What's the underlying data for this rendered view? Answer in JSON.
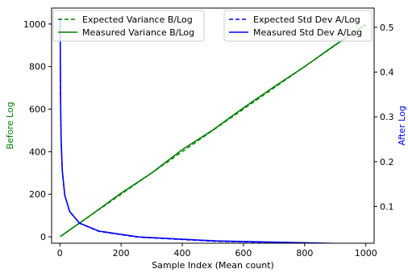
{
  "chart_data": {
    "type": "line",
    "title": "",
    "xlabel": "Sample Index (Mean count)",
    "ylabel_left": "Before Log",
    "ylabel_right": "After Log",
    "xlim": [
      -27,
      1027
    ],
    "ylim_left": [
      -30,
      1075
    ],
    "ylim_right": [
      0.018,
      0.543
    ],
    "x_ticks": [
      0,
      200,
      400,
      600,
      800,
      1000
    ],
    "y_ticks_left": [
      0,
      200,
      400,
      600,
      800,
      1000
    ],
    "y_ticks_right": [
      0.1,
      0.2,
      0.3,
      0.4,
      0.5
    ],
    "grid": false,
    "legend_left": {
      "placement": "upper-left",
      "entries": [
        {
          "label": "Expected Variance B/Log",
          "style": "dashed",
          "color": "#008000"
        },
        {
          "label": "Measured Variance B/Log",
          "style": "solid",
          "color": "#008000"
        }
      ]
    },
    "legend_right": {
      "placement": "upper-right",
      "entries": [
        {
          "label": "Expected Std Dev A/Log",
          "style": "dashed",
          "color": "#0000ff"
        },
        {
          "label": "Measured Std Dev A/Log",
          "style": "solid",
          "color": "#0000ff"
        }
      ]
    },
    "series": [
      {
        "name": "Expected Variance B/Log",
        "axis": "left",
        "color": "#008000",
        "style": "dashed",
        "x": [
          1,
          1000
        ],
        "y": [
          1,
          1000
        ]
      },
      {
        "name": "Measured Variance B/Log",
        "axis": "left",
        "color": "#008000",
        "style": "solid",
        "x": [
          1,
          100,
          200,
          300,
          400,
          500,
          600,
          700,
          800,
          900,
          1000
        ],
        "y": [
          1,
          101,
          205,
          300,
          410,
          502,
          606,
          705,
          800,
          902,
          998
        ]
      },
      {
        "name": "Expected Std Dev A/Log",
        "axis": "right",
        "color": "#0000ff",
        "style": "dashed",
        "x": [
          1,
          2,
          4,
          8,
          16,
          32,
          64,
          128,
          256,
          512,
          1000
        ],
        "y": [
          0.5,
          0.354,
          0.25,
          0.177,
          0.125,
          0.0884,
          0.0625,
          0.0442,
          0.0313,
          0.0221,
          0.0158
        ]
      },
      {
        "name": "Measured Std Dev A/Log",
        "axis": "right",
        "color": "#0000ff",
        "style": "solid",
        "x": [
          1,
          2,
          4,
          8,
          16,
          32,
          64,
          128,
          256,
          512,
          1000
        ],
        "y": [
          0.52,
          0.36,
          0.25,
          0.18,
          0.125,
          0.089,
          0.063,
          0.045,
          0.032,
          0.023,
          0.016
        ]
      }
    ]
  },
  "colors": {
    "left_axis_label": "#008000",
    "right_axis_label": "#0000ff"
  }
}
